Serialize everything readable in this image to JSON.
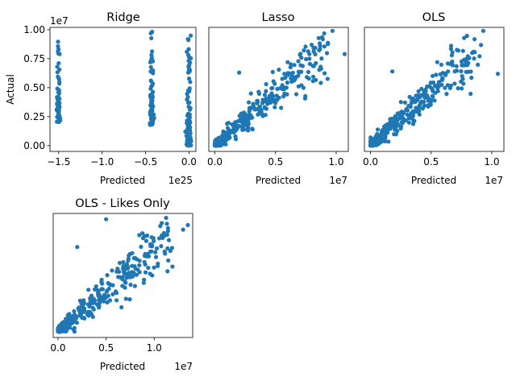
{
  "figure": {
    "point_color": "#1f77b4"
  },
  "chart_data": [
    {
      "type": "scatter",
      "title": "Ridge",
      "xlabel": "Predicted",
      "ylabel": "Actual",
      "x_exponent": "1e25",
      "y_exponent": "1e7",
      "xlim": [
        -1.6,
        0.08
      ],
      "ylim": [
        -0.05,
        1.02
      ],
      "xticks": [
        -1.5,
        -1.0,
        -0.5,
        0.0
      ],
      "xtick_labels": [
        "−1.5",
        "−1.0",
        "−0.5",
        "0.0"
      ],
      "yticks": [
        0.0,
        0.25,
        0.5,
        0.75,
        1.0
      ],
      "ytick_labels": [
        "0.00",
        "0.25",
        "0.50",
        "0.75",
        "1.00"
      ],
      "pattern": "vertical-clusters",
      "clusters": [
        {
          "x": -1.5,
          "y_range": [
            0.2,
            0.91
          ]
        },
        {
          "x": -0.43,
          "y_range": [
            0.18,
            0.99
          ]
        },
        {
          "x": 0.0,
          "y_range": [
            0.0,
            0.95
          ]
        }
      ]
    },
    {
      "type": "scatter",
      "title": "Lasso",
      "xlabel": "Predicted",
      "ylabel": "",
      "x_exponent": "1e7",
      "xlim": [
        -0.05,
        1.1
      ],
      "ylim": [
        -0.05,
        1.02
      ],
      "xticks": [
        0.0,
        0.5,
        1.0
      ],
      "xtick_labels": [
        "0.0",
        "0.5",
        "1.0"
      ],
      "yticks": [],
      "pattern": "linear-cloud",
      "outliers": [
        {
          "x": 1.07,
          "y": 0.79
        },
        {
          "x": 0.97,
          "y": 0.99
        },
        {
          "x": 0.6,
          "y": 0.72
        },
        {
          "x": 0.2,
          "y": 0.63
        }
      ]
    },
    {
      "type": "scatter",
      "title": "OLS",
      "xlabel": "Predicted",
      "ylabel": "",
      "x_exponent": "1e7",
      "xlim": [
        -0.05,
        1.1
      ],
      "ylim": [
        -0.05,
        1.02
      ],
      "xticks": [
        0.0,
        0.5,
        1.0
      ],
      "xtick_labels": [
        "0.0",
        "0.5",
        "1.0"
      ],
      "yticks": [],
      "pattern": "linear-cloud",
      "outliers": [
        {
          "x": 1.05,
          "y": 0.62
        },
        {
          "x": 0.93,
          "y": 0.99
        },
        {
          "x": 0.55,
          "y": 0.72
        },
        {
          "x": 0.18,
          "y": 0.64
        }
      ]
    },
    {
      "type": "scatter",
      "title": "OLS - Likes Only",
      "xlabel": "Predicted",
      "ylabel": "",
      "x_exponent": "1e7",
      "xlim": [
        -0.05,
        1.4
      ],
      "ylim": [
        -0.05,
        1.02
      ],
      "xticks": [
        0.0,
        0.5,
        1.0
      ],
      "xtick_labels": [
        "0.0",
        "0.5",
        "1.0"
      ],
      "yticks": [],
      "pattern": "linear-cloud",
      "outliers": [
        {
          "x": 1.35,
          "y": 0.92
        },
        {
          "x": 1.3,
          "y": 0.88
        },
        {
          "x": 0.2,
          "y": 0.73
        },
        {
          "x": 0.5,
          "y": 0.97
        }
      ]
    }
  ]
}
